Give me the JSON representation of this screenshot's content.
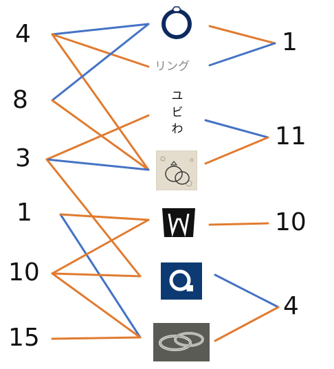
{
  "colors": {
    "blue": "#4472c4",
    "orange": "#e07b30",
    "navy": "#0d2a5e",
    "ink": "#111111",
    "gray": "#8a8a8a"
  },
  "left_numbers": [
    "4",
    "8",
    "3",
    "1",
    "10",
    "15"
  ],
  "right_numbers": [
    "1",
    "11",
    "10",
    "4"
  ],
  "middle": {
    "ring_icon": "ring-outline-icon",
    "ring_kana": "リング",
    "yubiwa_chars": [
      "ユ",
      "ビ",
      "わ"
    ],
    "ring_sketch": "ring-sketch-photo",
    "logo_w": "w-logo-icon",
    "logo_q": "q-logo-icon",
    "ring_photo": "wedding-rings-photo"
  },
  "links_left": [
    {
      "from": "4",
      "to": "ring_icon",
      "color": "blue"
    },
    {
      "from": "4",
      "to": "ring_kana",
      "color": "orange"
    },
    {
      "from": "4",
      "to": "ring_sketch",
      "color": "orange"
    },
    {
      "from": "8",
      "to": "ring_icon",
      "color": "blue"
    },
    {
      "from": "8",
      "to": "ring_sketch",
      "color": "orange"
    },
    {
      "from": "3",
      "to": "yubiwa",
      "color": "orange"
    },
    {
      "from": "3",
      "to": "ring_sketch",
      "color": "blue"
    },
    {
      "from": "3",
      "to": "logo_q",
      "color": "orange"
    },
    {
      "from": "1",
      "to": "ring_photo",
      "color": "blue"
    },
    {
      "from": "1",
      "to": "logo_w",
      "color": "orange"
    },
    {
      "from": "10",
      "to": "logo_w",
      "color": "orange"
    },
    {
      "from": "10",
      "to": "logo_q",
      "color": "orange"
    },
    {
      "from": "10",
      "to": "ring_photo",
      "color": "orange"
    },
    {
      "from": "15",
      "to": "ring_photo",
      "color": "orange"
    }
  ],
  "links_right": [
    {
      "from": "ring_icon",
      "to": "1",
      "color": "orange"
    },
    {
      "from": "ring_kana",
      "to": "1",
      "color": "blue"
    },
    {
      "from": "yubiwa",
      "to": "11",
      "color": "blue"
    },
    {
      "from": "ring_sketch",
      "to": "11",
      "color": "orange"
    },
    {
      "from": "logo_w",
      "to": "10",
      "color": "orange"
    },
    {
      "from": "logo_q",
      "to": "4",
      "color": "blue"
    },
    {
      "from": "ring_photo",
      "to": "4",
      "color": "orange"
    }
  ]
}
